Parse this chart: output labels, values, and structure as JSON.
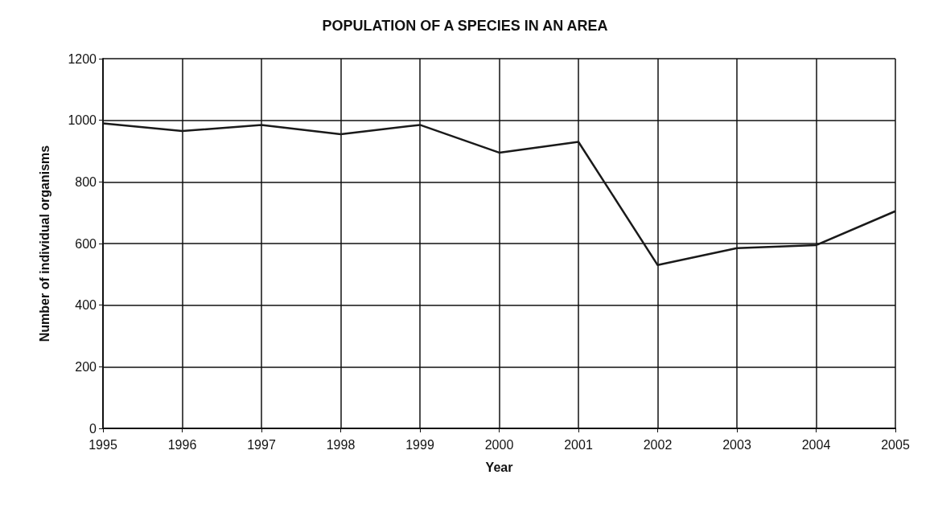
{
  "chart_data": {
    "type": "line",
    "title": "POPULATION OF A SPECIES IN AN AREA",
    "xlabel": "Year",
    "ylabel": "Number of individual organisms",
    "x": [
      1995,
      1996,
      1997,
      1998,
      1999,
      2000,
      2001,
      2002,
      2003,
      2004,
      2005
    ],
    "series": [
      {
        "color": "#1a1a1a",
        "values": [
          990,
          965,
          985,
          955,
          985,
          895,
          930,
          530,
          585,
          595,
          705
        ]
      }
    ],
    "xlim": [
      1995,
      2005
    ],
    "xticks": [
      1995,
      1996,
      1997,
      1998,
      1999,
      2000,
      2001,
      2002,
      2003,
      2004,
      2005
    ],
    "ylim": [
      0,
      1200
    ],
    "yticks": [
      0,
      200,
      400,
      600,
      800,
      1000,
      1200
    ],
    "grid": true,
    "marker": "none",
    "line_style": "solid"
  }
}
